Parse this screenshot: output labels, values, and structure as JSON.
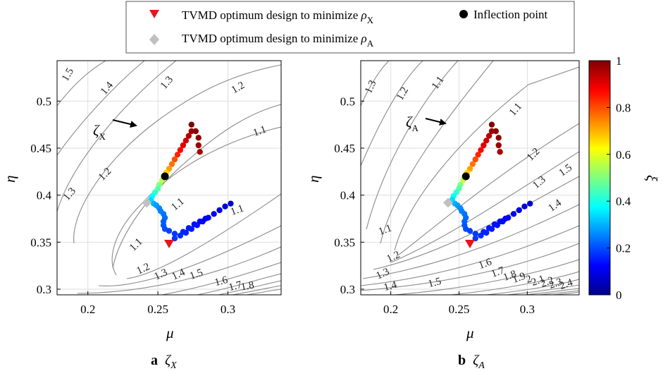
{
  "legend": {
    "items": [
      {
        "label": "TVMD optimum design to minimize ",
        "sym": "ρ",
        "sub": "X",
        "marker": "red-triangle"
      },
      {
        "label": "TVMD optimum design to minimize ",
        "sym": "ρ",
        "sub": "A",
        "marker": "gray-diamond"
      },
      {
        "label": "Inflection point",
        "marker": "black-dot"
      }
    ]
  },
  "colorbar": {
    "label": "ξ",
    "ticks": [
      "0",
      "0.2",
      "0.4",
      "0.6",
      "0.8",
      "1"
    ]
  },
  "panels": [
    {
      "caption_letter": "a",
      "caption_sym": "ζ",
      "caption_sub": "X",
      "annot_sym": "ζ",
      "annot_sub": "X",
      "contour_labels": [
        "1.5",
        "1.4",
        "1.3",
        "1.2",
        "1.1",
        "1.1",
        "1.2",
        "1.3",
        "1.1",
        "1.1",
        "1.2",
        "1.3",
        "1.4",
        "1.5",
        "1.6",
        "1.7",
        "1.8"
      ]
    },
    {
      "caption_letter": "b",
      "caption_sym": "ζ",
      "caption_sub": "A",
      "annot_sym": "ζ",
      "annot_sub": "A",
      "contour_labels": [
        "1.3",
        "1.2",
        "1.1",
        "1.1",
        "1.2",
        "1.3",
        "1.4",
        "1.5",
        "1.1",
        "1.2",
        "1.3",
        "1.4",
        "1.5",
        "1.6",
        "1.7",
        "1.8",
        "1.9",
        "2",
        "2.1",
        "2.2",
        "2.3",
        "2.4"
      ]
    }
  ],
  "chart_data": {
    "type": "scatter",
    "xlabel": "μ",
    "ylabel": "η",
    "xlim": [
      0.178,
      0.338
    ],
    "ylim": [
      0.294,
      0.543
    ],
    "xticks": [
      "0.2",
      "0.25",
      "0.3"
    ],
    "yticks": [
      "0.3",
      "0.35",
      "0.4",
      "0.45",
      "0.5"
    ],
    "colorbar_range": [
      0,
      1
    ],
    "optimum_rho_X": {
      "mu": 0.258,
      "eta": 0.348
    },
    "optimum_rho_A": {
      "mu": 0.242,
      "eta": 0.392
    },
    "inflection_point": {
      "mu": 0.255,
      "eta": 0.42
    },
    "trajectory": {
      "color_var": "ξ",
      "points": [
        [
          0.274,
          0.475,
          1.0
        ],
        [
          0.277,
          0.468,
          0.99
        ],
        [
          0.279,
          0.461,
          0.98
        ],
        [
          0.279,
          0.453,
          0.97
        ],
        [
          0.28,
          0.446,
          0.96
        ],
        [
          0.274,
          0.468,
          0.97
        ],
        [
          0.272,
          0.463,
          0.95
        ],
        [
          0.27,
          0.458,
          0.92
        ],
        [
          0.268,
          0.453,
          0.9
        ],
        [
          0.266,
          0.448,
          0.87
        ],
        [
          0.264,
          0.443,
          0.84
        ],
        [
          0.262,
          0.438,
          0.8
        ],
        [
          0.26,
          0.433,
          0.76
        ],
        [
          0.258,
          0.428,
          0.72
        ],
        [
          0.256,
          0.424,
          0.67
        ],
        [
          0.255,
          0.42,
          0.62
        ],
        [
          0.253,
          0.416,
          0.56
        ],
        [
          0.251,
          0.411,
          0.5
        ],
        [
          0.25,
          0.407,
          0.46
        ],
        [
          0.248,
          0.403,
          0.42
        ],
        [
          0.246,
          0.399,
          0.38
        ],
        [
          0.245,
          0.395,
          0.34
        ],
        [
          0.247,
          0.391,
          0.3
        ],
        [
          0.249,
          0.389,
          0.28
        ],
        [
          0.251,
          0.386,
          0.26
        ],
        [
          0.252,
          0.383,
          0.25
        ],
        [
          0.254,
          0.38,
          0.24
        ],
        [
          0.255,
          0.376,
          0.23
        ],
        [
          0.254,
          0.372,
          0.22
        ],
        [
          0.254,
          0.368,
          0.21
        ],
        [
          0.255,
          0.364,
          0.2
        ],
        [
          0.258,
          0.362,
          0.19
        ],
        [
          0.262,
          0.359,
          0.18
        ],
        [
          0.266,
          0.357,
          0.17
        ],
        [
          0.27,
          0.36,
          0.16
        ],
        [
          0.274,
          0.364,
          0.15
        ],
        [
          0.278,
          0.368,
          0.14
        ],
        [
          0.282,
          0.372,
          0.13
        ],
        [
          0.286,
          0.376,
          0.12
        ],
        [
          0.29,
          0.38,
          0.11
        ],
        [
          0.294,
          0.384,
          0.1
        ],
        [
          0.298,
          0.388,
          0.09
        ],
        [
          0.302,
          0.391,
          0.08
        ],
        [
          0.262,
          0.354,
          0.18
        ],
        [
          0.268,
          0.361,
          0.16
        ],
        [
          0.272,
          0.365,
          0.15
        ],
        [
          0.276,
          0.369,
          0.14
        ],
        [
          0.28,
          0.372,
          0.13
        ],
        [
          0.284,
          0.375,
          0.12
        ]
      ]
    }
  }
}
